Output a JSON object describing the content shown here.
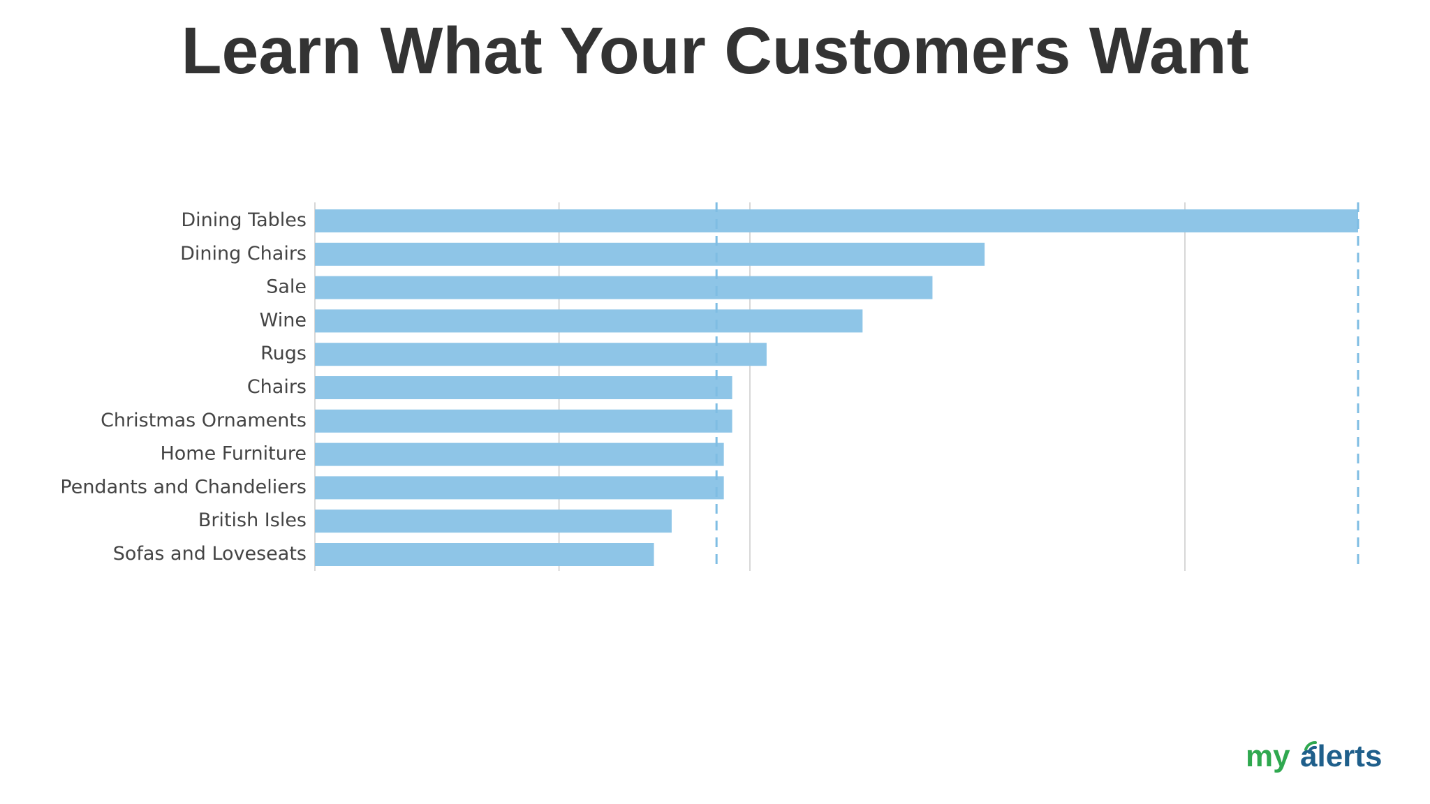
{
  "slide": {
    "title": "Learn What Your Customers Want"
  },
  "chart_data": {
    "type": "bar",
    "orientation": "horizontal",
    "categories": [
      "Dining Tables",
      "Dining Chairs",
      "Sale",
      "Wine",
      "Rugs",
      "Chairs",
      "Christmas Ornaments",
      "Home Furniture",
      "Pendants and Chandeliers",
      "British Isles",
      "Sofas and Loveseats"
    ],
    "values": [
      100,
      64.2,
      59.2,
      52.5,
      43.3,
      40.0,
      40.0,
      39.2,
      39.2,
      34.2,
      32.5
    ],
    "xlim": [
      0,
      100
    ],
    "reference_lines": [
      38.5,
      100
    ],
    "bar_color": "#8ec5e7",
    "reference_line_color": "#7fbde3",
    "grid_color": "#d7d7d7",
    "label_color": "#444444"
  },
  "logo": {
    "text_my": "my",
    "text_alerts": "alerts",
    "my_color": "#2fa84f",
    "alerts_color": "#1f5f8b"
  }
}
